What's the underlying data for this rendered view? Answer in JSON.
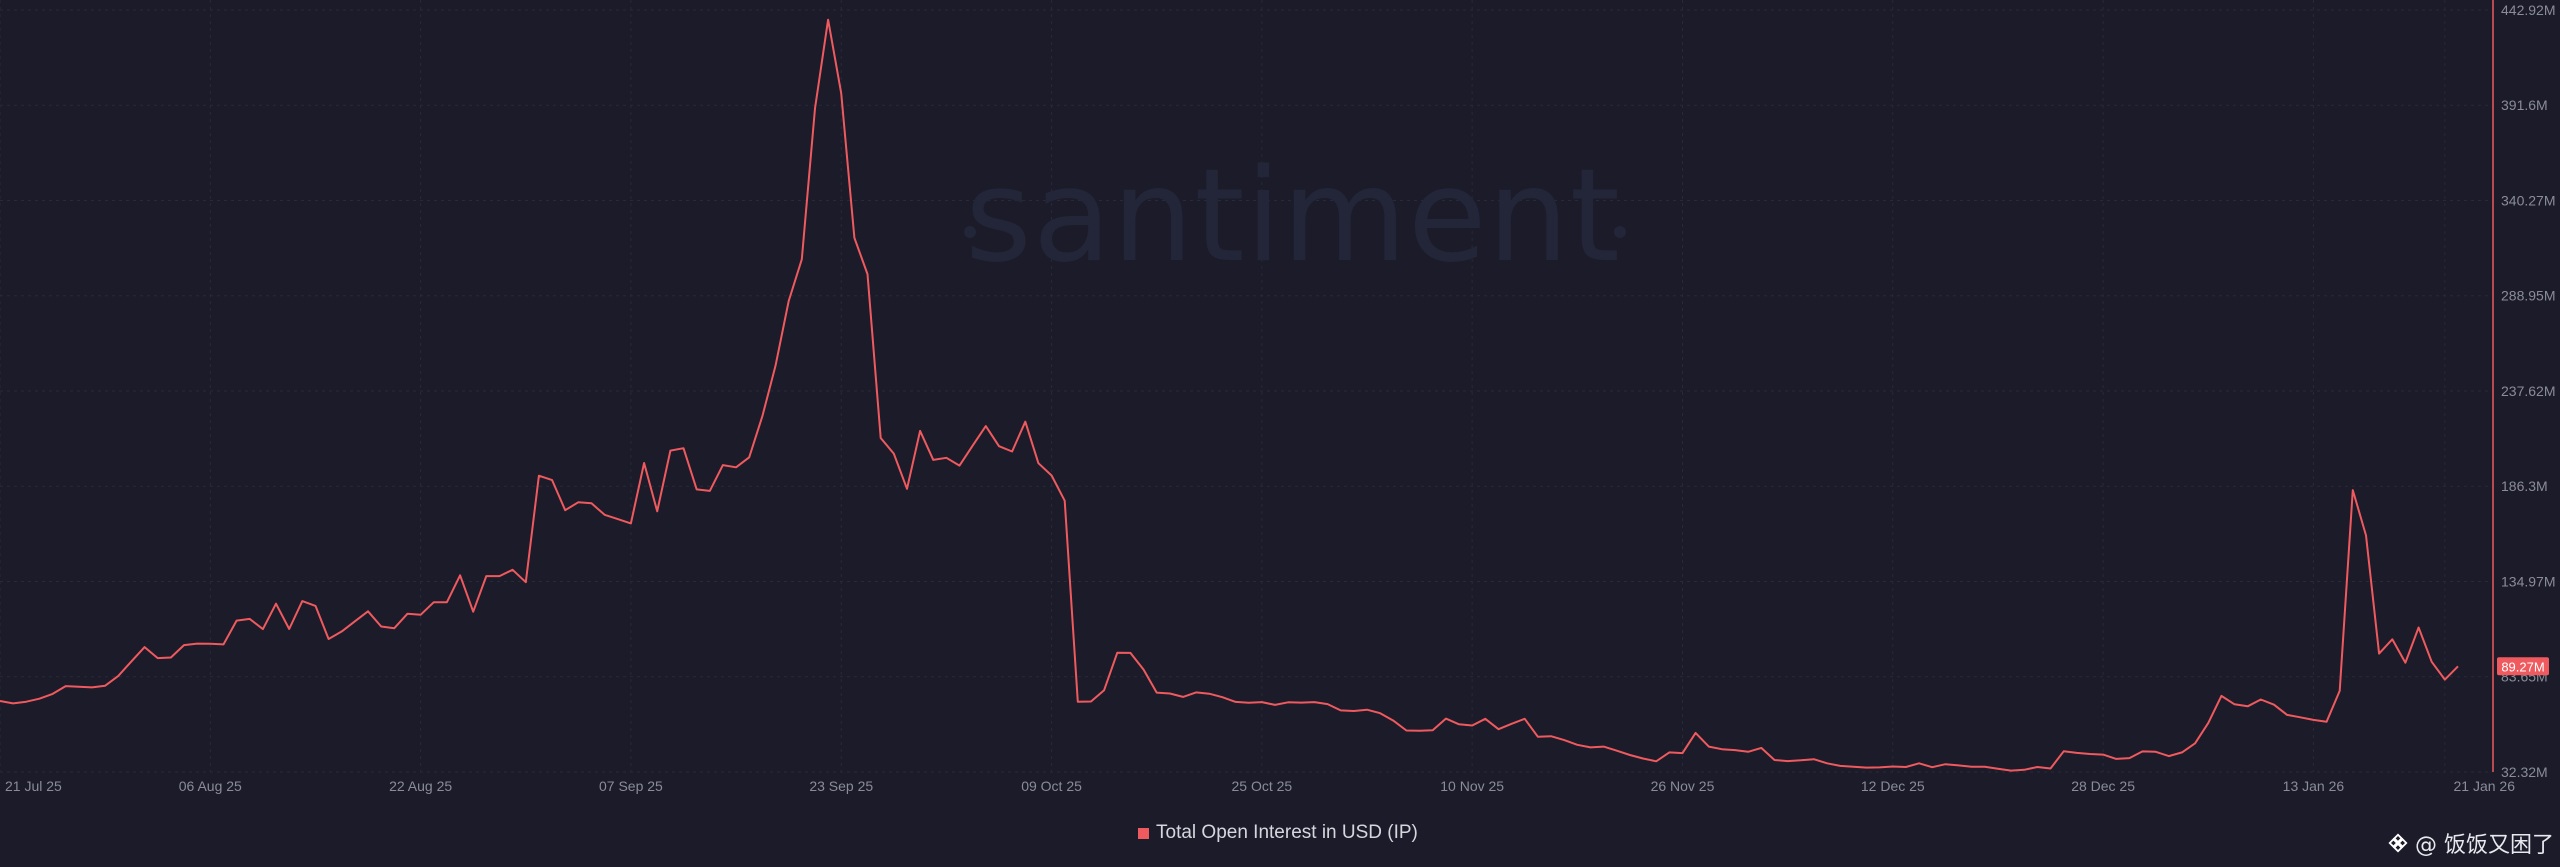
{
  "chart_data": {
    "type": "line",
    "watermark_brand": "santiment",
    "series": [
      {
        "name": "Total Open Interest in USD (IP)",
        "color": "#ef5a5f",
        "unit": "M",
        "values": [
          70.6,
          69.3,
          70.2,
          71.8,
          74.4,
          78.6,
          78.3,
          77.9,
          78.8,
          84.1,
          91.9,
          99.6,
          93.7,
          94.0,
          100.7,
          101.5,
          101.4,
          101.1,
          113.9,
          114.8,
          109.3,
          123.0,
          109.4,
          124.4,
          121.8,
          104.0,
          108.1,
          113.5,
          118.9,
          110.7,
          109.8,
          117.6,
          117.0,
          123.8,
          123.8,
          138.3,
          118.7,
          137.9,
          137.9,
          141.3,
          134.6,
          192.0,
          189.6,
          173.4,
          177.7,
          177.1,
          170.9,
          168.6,
          166.3,
          198.8,
          172.8,
          205.5,
          206.8,
          184.6,
          183.8,
          197.7,
          196.5,
          201.9,
          224.1,
          251.2,
          286.1,
          308.6,
          389.9,
          437.7,
          398.1,
          320.1,
          300.6,
          212.3,
          203.9,
          184.9,
          216.1,
          200.5,
          201.6,
          197.4,
          208.2,
          218.7,
          207.9,
          205.0,
          221.1,
          198.7,
          192.1,
          178.5,
          70.2,
          70.3,
          76.4,
          96.6,
          96.5,
          87.5,
          75.1,
          74.6,
          72.8,
          75.2,
          74.5,
          72.6,
          70.1,
          69.6,
          70.0,
          68.5,
          69.9,
          69.7,
          70.0,
          68.9,
          65.5,
          65.2,
          65.9,
          64.0,
          60.0,
          54.7,
          54.5,
          54.8,
          61.1,
          58.0,
          57.4,
          61.0,
          55.4,
          58.3,
          61.0,
          51.3,
          51.6,
          49.5,
          47.0,
          45.6,
          46.0,
          43.8,
          41.5,
          39.6,
          38.1,
          42.9,
          42.5,
          53.4,
          46.0,
          44.6,
          44.1,
          43.2,
          45.3,
          38.8,
          38.2,
          38.6,
          39.2,
          37.0,
          35.6,
          35.1,
          34.7,
          34.8,
          35.3,
          35.0,
          37.0,
          34.9,
          36.5,
          35.9,
          35.2,
          35.1,
          34.1,
          33.1,
          33.5,
          35.0,
          34.2,
          43.5,
          42.6,
          42.0,
          41.7,
          39.4,
          39.8,
          43.4,
          43.2,
          40.9,
          42.9,
          47.8,
          58.8,
          73.3,
          68.8,
          67.7,
          71.4,
          68.6,
          63.1,
          61.8,
          60.4,
          59.4,
          76.0,
          184.2,
          159.8,
          96.1,
          103.8,
          91.2,
          110.2,
          91.7,
          82.1,
          89.3
        ]
      }
    ],
    "x_tick_labels": [
      "21 Jul 25",
      "06 Aug 25",
      "22 Aug 25",
      "07 Sep 25",
      "23 Sep 25",
      "09 Oct 25",
      "25 Oct 25",
      "10 Nov 25",
      "26 Nov 25",
      "12 Dec 25",
      "28 Dec 25",
      "13 Jan 26",
      "21 Jan 26"
    ],
    "x_tick_index": [
      0,
      16,
      32,
      48,
      64,
      80,
      96,
      112,
      128,
      144,
      160,
      176,
      186
    ],
    "y_tick_labels": [
      "442.92M",
      "391.6M",
      "340.27M",
      "288.95M",
      "237.62M",
      "186.3M",
      "134.97M",
      "83.65M",
      "32.32M"
    ],
    "y_tick_values": [
      442.92,
      391.6,
      340.27,
      288.95,
      237.62,
      186.3,
      134.97,
      83.65,
      32.32
    ],
    "ylim": [
      32.32,
      442.92
    ],
    "grid": true,
    "axis_side": "right",
    "last_value_label": "89.27M",
    "legend": {
      "label": "Total Open Interest in USD (IP)",
      "position": "bottom-center"
    }
  },
  "attribution": {
    "handle": "@ 饭饭又困了"
  }
}
